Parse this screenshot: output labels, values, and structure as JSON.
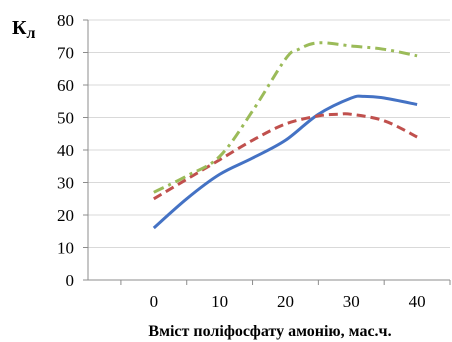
{
  "chart_data": {
    "type": "line",
    "ylabel": "К",
    "ylabel_sub": "л",
    "xlabel": "Вміст поліфосфату амонію, мас.ч.",
    "xlim": [
      -10,
      45
    ],
    "ylim": [
      0,
      80
    ],
    "xticks": [
      0,
      10,
      20,
      30,
      40
    ],
    "yticks": [
      0,
      10,
      20,
      30,
      40,
      50,
      60,
      70,
      80
    ],
    "grid": "horizontal",
    "legend": "none",
    "series": [
      {
        "color": "#4472c4",
        "style": "solid",
        "x": [
          0,
          5,
          10,
          15,
          20,
          25,
          30,
          32,
          35,
          40
        ],
        "y": [
          16,
          25,
          32.5,
          37.5,
          43,
          51,
          56,
          56.5,
          56,
          54
        ]
      },
      {
        "color": "#c0504d",
        "style": "dashed",
        "x": [
          0,
          5,
          10,
          15,
          20,
          25,
          28,
          30,
          35,
          40
        ],
        "y": [
          25,
          31,
          37,
          43,
          48,
          50.5,
          51,
          51,
          49,
          44
        ]
      },
      {
        "color": "#9bbb59",
        "style": "dashdot",
        "x": [
          0,
          5,
          10,
          15,
          20,
          22,
          25,
          30,
          35,
          40
        ],
        "y": [
          27,
          32,
          38,
          52,
          68,
          71,
          73,
          72,
          71,
          69
        ]
      }
    ]
  }
}
